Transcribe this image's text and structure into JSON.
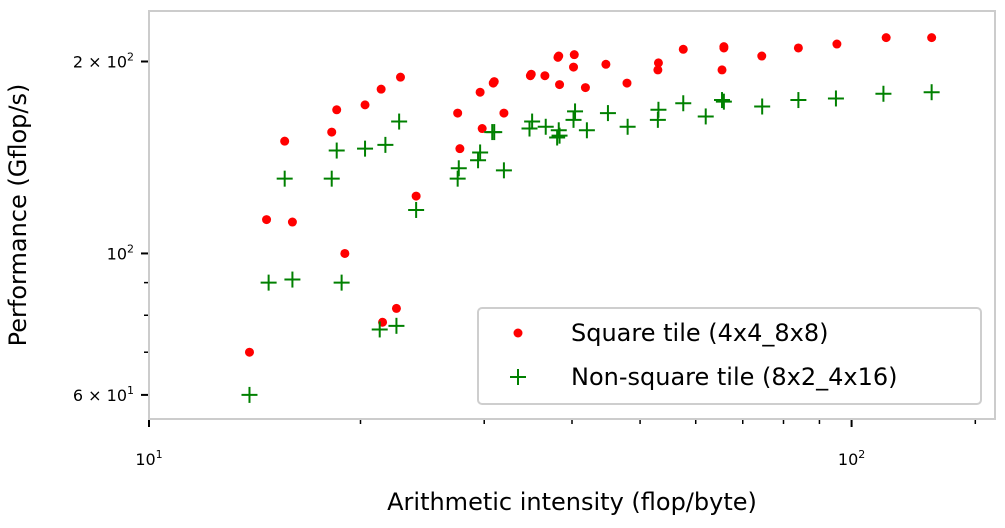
{
  "chart_data": {
    "type": "scatter",
    "xscale": "log",
    "yscale": "log",
    "xlabel": "Arithmetic intensity (flop/byte)",
    "ylabel": "Performance (Gflop/s)",
    "xlim": [
      10,
      160
    ],
    "ylim": [
      55,
      240
    ],
    "grid": false,
    "legend_position": "lower-right",
    "x_ticks": [
      {
        "value": 10,
        "label": "10",
        "sup": "1"
      },
      {
        "value": 100,
        "label": "10",
        "sup": "2"
      }
    ],
    "y_ticks": [
      {
        "value": 60,
        "label": "6 × 10",
        "sup": "1"
      },
      {
        "value": 100,
        "label": "10",
        "sup": "2"
      },
      {
        "value": 200,
        "label": "2 × 10",
        "sup": "2"
      }
    ],
    "series": [
      {
        "name": "Square tile (4x4_8x8)",
        "color": "#ff0000",
        "marker": "dot",
        "x": [
          13.9,
          14.7,
          15.6,
          16.0,
          18.2,
          18.5,
          19.0,
          20.3,
          21.4,
          21.5,
          22.5,
          22.8,
          24.0,
          27.5,
          27.7,
          29.6,
          29.8,
          30.9,
          31.0,
          32.0,
          34.9,
          35.0,
          36.6,
          38.2,
          38.3,
          38.4,
          40.2,
          40.3,
          41.8,
          44.7,
          47.9,
          53.0,
          53.1,
          57.6,
          65.4,
          65.8,
          65.8,
          74.5,
          84.0,
          95.3,
          112.0,
          130.0
        ],
        "y": [
          70,
          113,
          150,
          112,
          155,
          168,
          100,
          171,
          181,
          78,
          82,
          189,
          123,
          166,
          146,
          179,
          157,
          185,
          186,
          166,
          190,
          191,
          190,
          203,
          204,
          184,
          196,
          205,
          182,
          198,
          185,
          194,
          199,
          209,
          194,
          211,
          210,
          204,
          210,
          213,
          218,
          218
        ]
      },
      {
        "name": "Non-square tile (8x2_4x16)",
        "color": "#008000",
        "marker": "plus",
        "x": [
          13.9,
          14.8,
          15.6,
          16.0,
          18.2,
          18.5,
          18.8,
          20.3,
          21.3,
          21.7,
          22.5,
          22.7,
          24.0,
          27.5,
          27.6,
          29.4,
          29.6,
          30.8,
          31.0,
          32.0,
          34.8,
          35.1,
          36.7,
          38.1,
          38.3,
          38.4,
          40.2,
          40.4,
          42.0,
          45.0,
          48.0,
          53.0,
          53.1,
          57.6,
          62.0,
          65.4,
          65.8,
          74.6,
          84.0,
          95.0,
          111.0,
          130.0
        ],
        "y": [
          60,
          90,
          131,
          91,
          131,
          145,
          90,
          146,
          76,
          148,
          77,
          161,
          117,
          131,
          136,
          140,
          144,
          155,
          155,
          135,
          157,
          161,
          158,
          152,
          156,
          153,
          162,
          167,
          156,
          166,
          158,
          162,
          168,
          172,
          164,
          174,
          173,
          170,
          174,
          175,
          178,
          179
        ]
      }
    ]
  }
}
